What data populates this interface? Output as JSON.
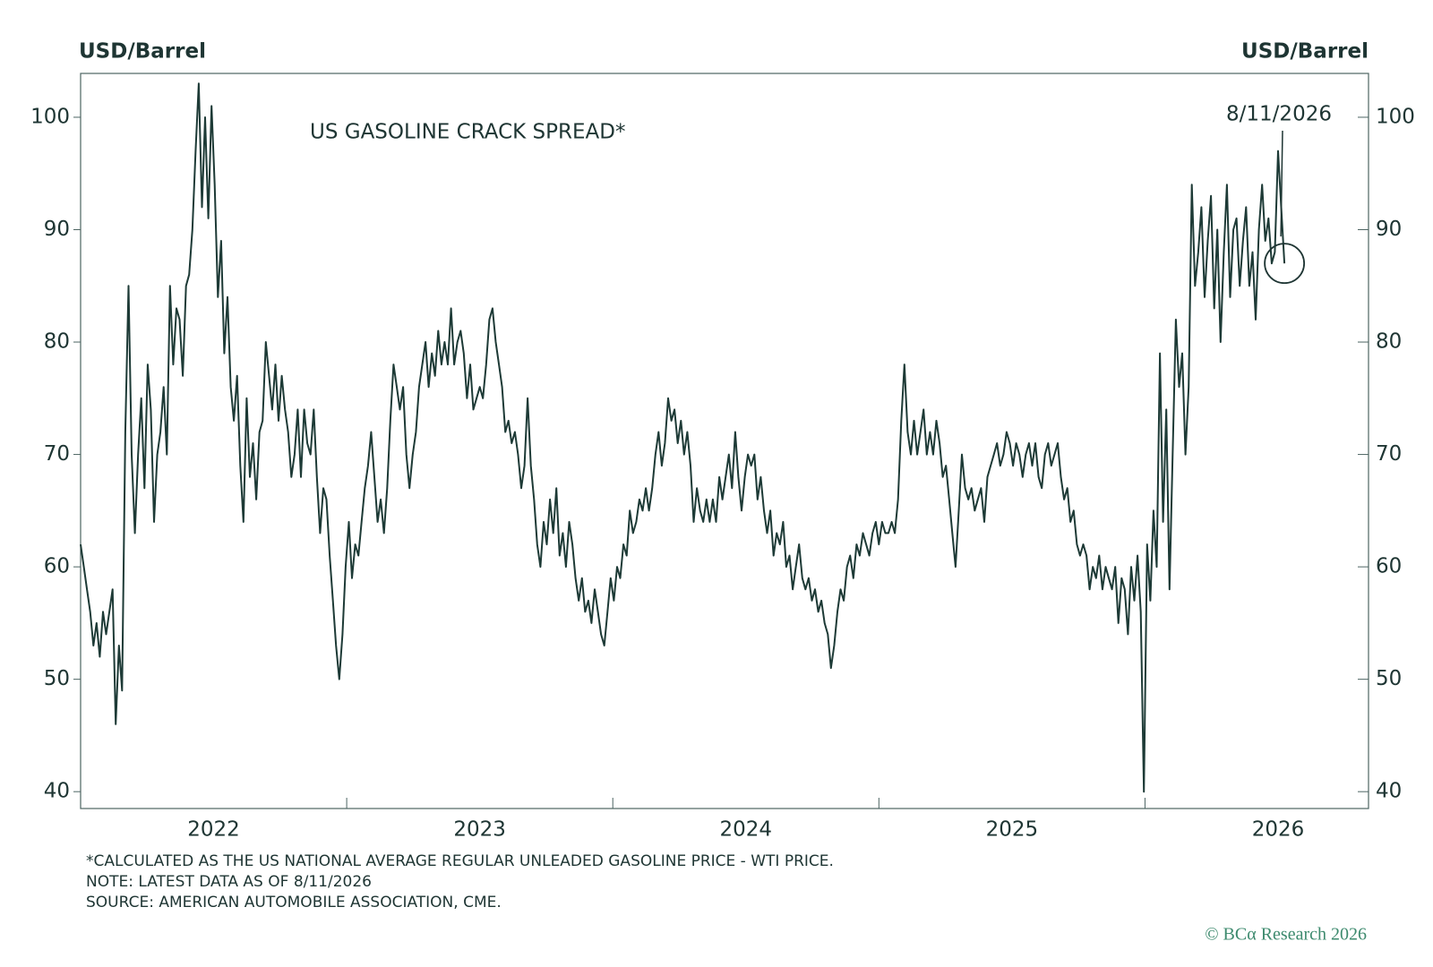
{
  "chart_data": {
    "type": "line",
    "title": "US GASOLINE CRACK SPREAD*",
    "ylabel": "USD/Barrel",
    "y2label": "USD/Barrel",
    "annotation": "8/11/2026",
    "notes": [
      "*CALCULATED AS THE US NATIONAL AVERAGE REGULAR UNLEADED GASOLINE PRICE - WTI PRICE.",
      "NOTE: LATEST DATA AS OF 8/11/2026",
      "SOURCE: AMERICAN AUTOMOBILE ASSOCIATION, CME."
    ],
    "credit": "© BCα Research 2026",
    "color": "#1d3a36",
    "xlim": [
      2022,
      2026.84
    ],
    "xticks": [
      2022,
      2023,
      2024,
      2025,
      2026
    ],
    "ylim": [
      38.5,
      103.9
    ],
    "yticks": [
      40,
      50,
      60,
      70,
      80,
      90,
      100
    ],
    "y2lim": [
      38.5,
      103.9
    ],
    "y2ticks": [
      40,
      50,
      60,
      70,
      80,
      90,
      100
    ],
    "grid": false,
    "x": [
      2022,
      2022.012,
      2022.024,
      2022.036,
      2022.048,
      2022.06,
      2022.072,
      2022.084,
      2022.096,
      2022.108,
      2022.12,
      2022.132,
      2022.144,
      2022.156,
      2022.168,
      2022.18,
      2022.192,
      2022.204,
      2022.216,
      2022.228,
      2022.24,
      2022.252,
      2022.264,
      2022.276,
      2022.288,
      2022.3,
      2022.312,
      2022.324,
      2022.336,
      2022.348,
      2022.36,
      2022.372,
      2022.384,
      2022.396,
      2022.408,
      2022.42,
      2022.432,
      2022.444,
      2022.456,
      2022.468,
      2022.48,
      2022.492,
      2022.504,
      2022.516,
      2022.528,
      2022.54,
      2022.552,
      2022.564,
      2022.576,
      2022.588,
      2022.6,
      2022.612,
      2022.624,
      2022.636,
      2022.648,
      2022.66,
      2022.672,
      2022.684,
      2022.696,
      2022.708,
      2022.72,
      2022.732,
      2022.744,
      2022.756,
      2022.768,
      2022.78,
      2022.792,
      2022.804,
      2022.816,
      2022.828,
      2022.84,
      2022.852,
      2022.864,
      2022.876,
      2022.888,
      2022.9,
      2022.912,
      2022.924,
      2022.936,
      2022.948,
      2022.96,
      2022.972,
      2022.984,
      2022.996,
      2023.008,
      2023.02,
      2023.032,
      2023.044,
      2023.056,
      2023.068,
      2023.08,
      2023.092,
      2023.104,
      2023.116,
      2023.128,
      2023.14,
      2023.152,
      2023.164,
      2023.176,
      2023.188,
      2023.2,
      2023.212,
      2023.224,
      2023.236,
      2023.248,
      2023.26,
      2023.272,
      2023.284,
      2023.296,
      2023.308,
      2023.32,
      2023.332,
      2023.344,
      2023.356,
      2023.368,
      2023.38,
      2023.392,
      2023.404,
      2023.416,
      2023.428,
      2023.44,
      2023.452,
      2023.464,
      2023.476,
      2023.488,
      2023.5,
      2023.512,
      2023.524,
      2023.536,
      2023.548,
      2023.56,
      2023.572,
      2023.584,
      2023.596,
      2023.608,
      2023.62,
      2023.632,
      2023.644,
      2023.656,
      2023.668,
      2023.68,
      2023.692,
      2023.704,
      2023.716,
      2023.728,
      2023.74,
      2023.752,
      2023.764,
      2023.776,
      2023.788,
      2023.8,
      2023.812,
      2023.824,
      2023.836,
      2023.848,
      2023.86,
      2023.872,
      2023.884,
      2023.896,
      2023.908,
      2023.92,
      2023.932,
      2023.944,
      2023.956,
      2023.968,
      2023.98,
      2023.992,
      2024.004,
      2024.016,
      2024.028,
      2024.04,
      2024.052,
      2024.064,
      2024.076,
      2024.088,
      2024.1,
      2024.112,
      2024.124,
      2024.136,
      2024.148,
      2024.16,
      2024.172,
      2024.184,
      2024.196,
      2024.208,
      2024.22,
      2024.232,
      2024.244,
      2024.256,
      2024.268,
      2024.28,
      2024.292,
      2024.304,
      2024.316,
      2024.328,
      2024.34,
      2024.352,
      2024.364,
      2024.376,
      2024.388,
      2024.4,
      2024.412,
      2024.424,
      2024.436,
      2024.448,
      2024.46,
      2024.472,
      2024.484,
      2024.496,
      2024.508,
      2024.52,
      2024.532,
      2024.544,
      2024.556,
      2024.568,
      2024.58,
      2024.592,
      2024.604,
      2024.616,
      2024.628,
      2024.64,
      2024.652,
      2024.664,
      2024.676,
      2024.688,
      2024.7,
      2024.712,
      2024.724,
      2024.736,
      2024.748,
      2024.76,
      2024.772,
      2024.784,
      2024.796,
      2024.808,
      2024.82,
      2024.832,
      2024.844,
      2024.856,
      2024.868,
      2024.88,
      2024.892,
      2024.904,
      2024.916,
      2024.928,
      2024.94,
      2024.952,
      2024.964,
      2024.976,
      2024.988,
      2025,
      2025.012,
      2025.024,
      2025.036,
      2025.048,
      2025.06,
      2025.072,
      2025.084,
      2025.096,
      2025.108,
      2025.12,
      2025.132,
      2025.144,
      2025.156,
      2025.168,
      2025.18,
      2025.192,
      2025.204,
      2025.216,
      2025.228,
      2025.24,
      2025.252,
      2025.264,
      2025.276,
      2025.288,
      2025.3,
      2025.312,
      2025.324,
      2025.336,
      2025.348,
      2025.36,
      2025.372,
      2025.384,
      2025.396,
      2025.408,
      2025.42,
      2025.432,
      2025.444,
      2025.456,
      2025.468,
      2025.48,
      2025.492,
      2025.504,
      2025.516,
      2025.528,
      2025.54,
      2025.552,
      2025.564,
      2025.576,
      2025.588,
      2025.6,
      2025.612,
      2025.624,
      2025.636,
      2025.648,
      2025.66,
      2025.672,
      2025.684,
      2025.696,
      2025.708,
      2025.72,
      2025.732,
      2025.744,
      2025.756,
      2025.768,
      2025.78,
      2025.792,
      2025.804,
      2025.816,
      2025.828,
      2025.84,
      2025.852,
      2025.864,
      2025.876,
      2025.888,
      2025.9,
      2025.912,
      2025.924,
      2025.936,
      2025.948,
      2025.96,
      2025.972,
      2025.984,
      2025.996,
      2026.008,
      2026.02,
      2026.032,
      2026.044,
      2026.056,
      2026.068,
      2026.08,
      2026.092,
      2026.104,
      2026.116,
      2026.128,
      2026.14,
      2026.152,
      2026.164,
      2026.176,
      2026.188,
      2026.2,
      2026.212,
      2026.224,
      2026.236,
      2026.248,
      2026.26,
      2026.272,
      2026.284,
      2026.296,
      2026.308,
      2026.32,
      2026.332,
      2026.344,
      2026.356,
      2026.368,
      2026.38,
      2026.392,
      2026.404,
      2026.416,
      2026.428,
      2026.44,
      2026.452,
      2026.464,
      2026.476,
      2026.488,
      2026.5,
      2026.512,
      2026.524
    ],
    "values": [
      62,
      60,
      58,
      56,
      53,
      55,
      52,
      56,
      54,
      56,
      58,
      46,
      53,
      49,
      72,
      85,
      70,
      63,
      70,
      75,
      67,
      78,
      74,
      64,
      70,
      72,
      76,
      70,
      85,
      78,
      83,
      82,
      77,
      85,
      86,
      90,
      97,
      103,
      92,
      100,
      91,
      101,
      94,
      84,
      89,
      79,
      84,
      76,
      73,
      77,
      69,
      64,
      75,
      68,
      71,
      66,
      72,
      73,
      80,
      77,
      74,
      78,
      73,
      77,
      74,
      72,
      68,
      70,
      74,
      68,
      74,
      71,
      70,
      74,
      68,
      63,
      67,
      66,
      61,
      57,
      53,
      50,
      54,
      60,
      64,
      59,
      62,
      61,
      64,
      67,
      69,
      72,
      68,
      64,
      66,
      63,
      67,
      73,
      78,
      76,
      74,
      76,
      70,
      67,
      70,
      72,
      76,
      78,
      80,
      76,
      79,
      77,
      81,
      78,
      80,
      78,
      83,
      78,
      80,
      81,
      79,
      75,
      78,
      74,
      75,
      76,
      75,
      78,
      82,
      83,
      80,
      78,
      76,
      72,
      73,
      71,
      72,
      70,
      67,
      69,
      75,
      69,
      66,
      62,
      60,
      64,
      62,
      66,
      63,
      67,
      61,
      63,
      60,
      64,
      62,
      59,
      57,
      59,
      56,
      57,
      55,
      58,
      56,
      54,
      53,
      56,
      59,
      57,
      60,
      59,
      62,
      61,
      65,
      63,
      64,
      66,
      65,
      67,
      65,
      67,
      70,
      72,
      69,
      71,
      75,
      73,
      74,
      71,
      73,
      70,
      72,
      69,
      64,
      67,
      65,
      64,
      66,
      64,
      66,
      64,
      68,
      66,
      68,
      70,
      67,
      72,
      68,
      65,
      68,
      70,
      69,
      70,
      66,
      68,
      65,
      63,
      65,
      61,
      63,
      62,
      64,
      60,
      61,
      58,
      60,
      62,
      59,
      58,
      59,
      57,
      58,
      56,
      57,
      55,
      54,
      51,
      53,
      56,
      58,
      57,
      60,
      61,
      59,
      62,
      61,
      63,
      62,
      61,
      63,
      64,
      62,
      64,
      63,
      63,
      64,
      63,
      66,
      73,
      78,
      72,
      70,
      73,
      70,
      72,
      74,
      70,
      72,
      70,
      73,
      71,
      68,
      69,
      66,
      63,
      60,
      65,
      70,
      67,
      66,
      67,
      65,
      66,
      67,
      64,
      68,
      69,
      70,
      71,
      69,
      70,
      72,
      71,
      69,
      71,
      70,
      68,
      70,
      71,
      69,
      71,
      68,
      67,
      70,
      71,
      69,
      70,
      71,
      68,
      66,
      67,
      64,
      65,
      62,
      61,
      62,
      61,
      58,
      60,
      59,
      61,
      58,
      60,
      59,
      58,
      60,
      55,
      59,
      58,
      54,
      60,
      57,
      61,
      56,
      40,
      62,
      57,
      65,
      60,
      79,
      64,
      74,
      58,
      70,
      82,
      76,
      79,
      70,
      76,
      94,
      85,
      88,
      92,
      84,
      89,
      93,
      83,
      90,
      80,
      88,
      94,
      84,
      90,
      91,
      85,
      89,
      92,
      85,
      88,
      82,
      90,
      94,
      89,
      91,
      87,
      88,
      97,
      92,
      87
    ]
  }
}
